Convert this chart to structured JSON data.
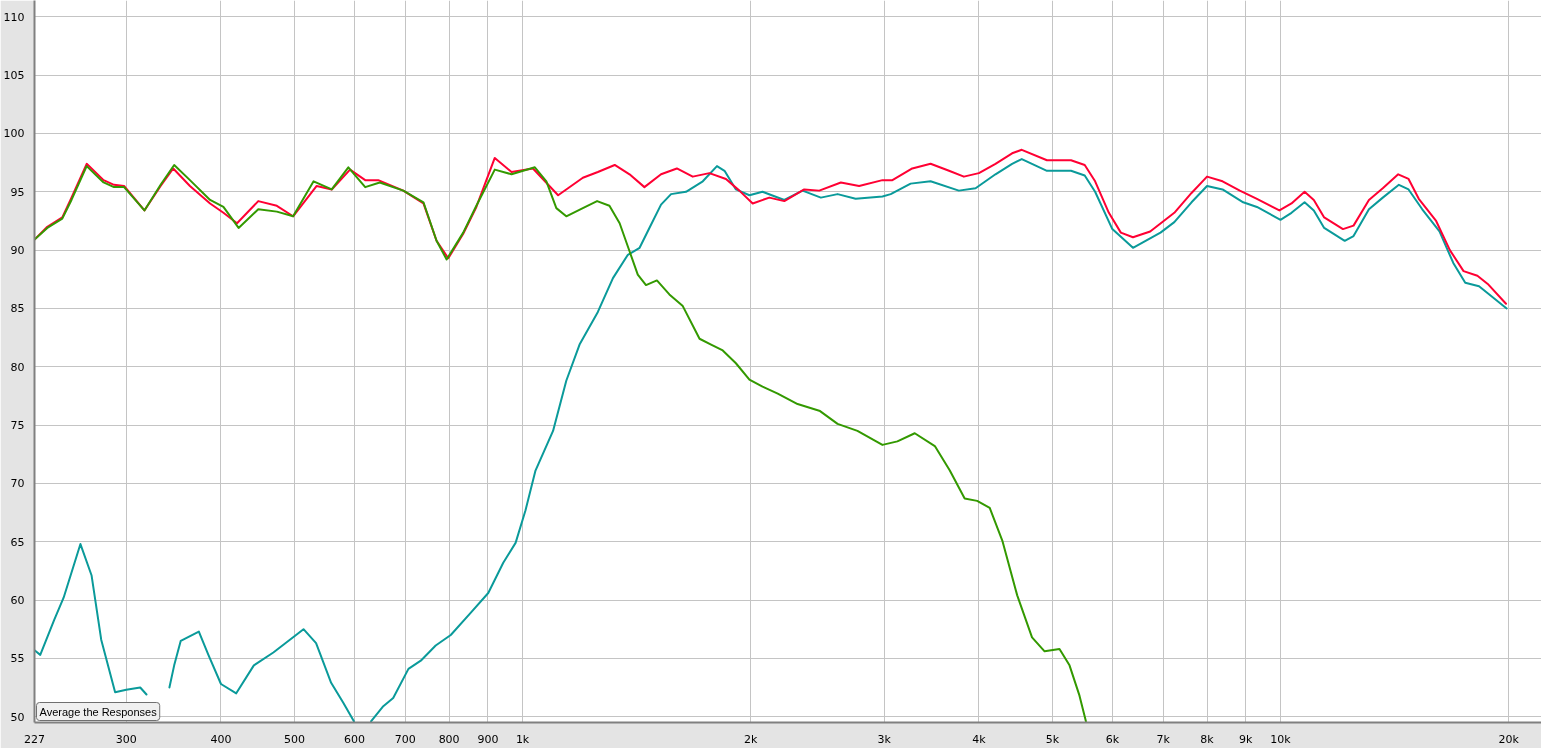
{
  "chart_data": {
    "type": "line",
    "log": "x",
    "grid": true,
    "xlim": [
      227,
      22100
    ],
    "ylim": [
      49.5,
      111.4
    ],
    "xticks": [
      227,
      300,
      400,
      500,
      600,
      700,
      800,
      900,
      {
        "value": 1000,
        "label": "1k"
      },
      {
        "value": 2000,
        "label": "2k"
      },
      {
        "value": 3000,
        "label": "3k"
      },
      {
        "value": 4000,
        "label": "4k"
      },
      {
        "value": 5000,
        "label": "5k"
      },
      {
        "value": 6000,
        "label": "6k"
      },
      {
        "value": 7000,
        "label": "7k"
      },
      {
        "value": 8000,
        "label": "8k"
      },
      {
        "value": 9000,
        "label": "9k"
      },
      {
        "value": 10000,
        "label": "10k"
      },
      {
        "value": 20000,
        "label": "20k"
      }
    ],
    "yticks": [
      50,
      55,
      60,
      65,
      70,
      75,
      80,
      85,
      90,
      95,
      100,
      105,
      110
    ],
    "annotations": [
      "Average the Responses"
    ],
    "series": [
      {
        "color": "#0a9a9a",
        "x": [
          227,
          231,
          241,
          248,
          261,
          270,
          278,
          290,
          300,
          313,
          319,
          330,
          342,
          347,
          354,
          374,
          385,
          400,
          419,
          442,
          469,
          514,
          534,
          559,
          580,
          599,
          615,
          631,
          655,
          675,
          707,
          734,
          768,
          804,
          854,
          901,
          943,
          979,
          1009,
          1040,
          1097,
          1142,
          1189,
          1257,
          1316,
          1377,
          1427,
          1470,
          1523,
          1570,
          1643,
          1729,
          1805,
          1847,
          1912,
          1992,
          2073,
          2215,
          2341,
          2475,
          2604,
          2751,
          2984,
          3060,
          3251,
          3454,
          3764,
          3960,
          4207,
          4425,
          4557,
          4919,
          5292,
          5517,
          5694,
          6000,
          6388,
          6945,
          7243,
          7632,
          8000,
          8386,
          8929,
          9310,
          10000,
          10340,
          10760,
          11066,
          11420,
          12155,
          12485,
          13083,
          13645,
          14330,
          14757,
          15383,
          16210,
          16904,
          17530,
          18280,
          18770,
          19880
        ],
        "values": [
          55.7,
          55.3,
          58.3,
          60.2,
          64.8,
          62.1,
          56.6,
          52.1,
          52.3,
          52.5,
          51.9,
          null,
          52.5,
          54.4,
          56.5,
          57.3,
          55.3,
          52.8,
          52.0,
          54.4,
          55.5,
          57.5,
          56.3,
          52.9,
          51.2,
          49.6,
          null,
          49.6,
          50.9,
          51.6,
          54.1,
          54.8,
          56.1,
          57.0,
          58.9,
          60.6,
          63.2,
          64.9,
          67.7,
          71.1,
          74.5,
          78.8,
          81.9,
          84.7,
          87.6,
          89.6,
          90.2,
          91.9,
          93.9,
          94.8,
          95.0,
          95.9,
          97.2,
          96.8,
          95.2,
          94.7,
          95.0,
          94.3,
          95.1,
          94.5,
          94.8,
          94.4,
          94.6,
          94.8,
          95.7,
          95.9,
          95.1,
          95.3,
          96.5,
          97.4,
          97.8,
          96.8,
          96.8,
          96.4,
          95.0,
          91.8,
          90.2,
          91.5,
          92.4,
          94.1,
          95.5,
          95.2,
          94.1,
          93.7,
          92.6,
          93.2,
          94.1,
          93.4,
          91.9,
          90.8,
          91.2,
          93.5,
          94.5,
          95.6,
          95.2,
          93.5,
          91.6,
          88.9,
          87.2,
          86.9,
          86.3,
          85.0
        ]
      },
      {
        "color": "#ff0033",
        "x": [
          227,
          236,
          247,
          254,
          266,
          280,
          289,
          298,
          317,
          333,
          346,
          364,
          387,
          403,
          420,
          448,
          474,
          498,
          535,
          560,
          592,
          620,
          645,
          696,
          740,
          770,
          798,
          835,
          869,
          919,
          967,
          1032,
          1114,
          1201,
          1257,
          1323,
          1384,
          1448,
          1523,
          1598,
          1677,
          1764,
          1855,
          1932,
          2012,
          2116,
          2215,
          2353,
          2463,
          2630,
          2780,
          2984,
          3076,
          3267,
          3454,
          3653,
          3822,
          4000,
          4207,
          4425,
          4557,
          4919,
          5292,
          5517,
          5694,
          5937,
          6157,
          6388,
          6731,
          7243,
          7632,
          8000,
          8386,
          8838,
          9310,
          9967,
          10340,
          10760,
          11066,
          11420,
          12090,
          12485,
          13083,
          13645,
          14300,
          14757,
          15222,
          16046,
          16730,
          17440,
          18190,
          18770,
          19840
        ],
        "values": [
          90.9,
          92.0,
          92.8,
          94.5,
          97.4,
          96.0,
          95.6,
          95.5,
          93.4,
          95.5,
          97.0,
          95.5,
          94.0,
          93.2,
          92.3,
          94.2,
          93.8,
          92.9,
          95.5,
          95.2,
          96.9,
          96.0,
          96.0,
          95.1,
          94.0,
          90.8,
          89.3,
          91.4,
          93.7,
          97.9,
          96.7,
          97.0,
          94.7,
          96.2,
          96.7,
          97.3,
          96.5,
          95.4,
          96.5,
          97.0,
          96.3,
          96.6,
          96.1,
          95.1,
          94.0,
          94.5,
          94.2,
          95.2,
          95.1,
          95.8,
          95.5,
          96.0,
          96.0,
          97.0,
          97.4,
          96.8,
          96.3,
          96.6,
          97.4,
          98.3,
          98.6,
          97.7,
          97.7,
          97.3,
          95.9,
          93.2,
          91.5,
          91.1,
          91.6,
          93.2,
          94.9,
          96.3,
          95.9,
          95.1,
          94.4,
          93.4,
          94.0,
          95.0,
          94.3,
          92.8,
          91.8,
          92.1,
          94.3,
          95.3,
          96.5,
          96.1,
          94.4,
          92.5,
          90.0,
          88.2,
          87.8,
          87.1,
          85.4
        ]
      },
      {
        "color": "#339900",
        "x": [
          227,
          236,
          247,
          254,
          266,
          280,
          289,
          298,
          317,
          333,
          347,
          364,
          387,
          403,
          422,
          448,
          474,
          498,
          530,
          560,
          589,
          620,
          648,
          696,
          740,
          770,
          794,
          835,
          869,
          919,
          967,
          1038,
          1075,
          1108,
          1142,
          1201,
          1254,
          1302,
          1343,
          1384,
          1419,
          1455,
          1504,
          1562,
          1627,
          1712,
          1773,
          1837,
          1912,
          1992,
          2073,
          2171,
          2306,
          2469,
          2604,
          2766,
          2984,
          3123,
          3292,
          3499,
          3662,
          3831,
          3979,
          4134,
          4295,
          4494,
          4701,
          4884,
          5110,
          5268,
          5430,
          5537
        ],
        "values": [
          90.9,
          91.9,
          92.7,
          94.3,
          97.2,
          95.8,
          95.4,
          95.4,
          93.4,
          95.6,
          97.3,
          96.0,
          94.3,
          93.7,
          91.9,
          93.5,
          93.3,
          92.9,
          95.9,
          95.2,
          97.1,
          95.4,
          95.8,
          95.1,
          94.1,
          90.8,
          89.2,
          91.5,
          93.8,
          96.9,
          96.5,
          97.1,
          95.9,
          93.6,
          92.9,
          93.6,
          94.2,
          93.8,
          92.3,
          89.9,
          87.9,
          87.0,
          87.4,
          86.2,
          85.2,
          82.4,
          81.9,
          81.4,
          80.3,
          78.9,
          78.3,
          77.7,
          76.8,
          76.2,
          75.1,
          74.5,
          73.3,
          73.6,
          74.3,
          73.2,
          71.1,
          68.7,
          68.5,
          67.9,
          65.1,
          60.4,
          56.8,
          55.6,
          55.8,
          54.4,
          51.8,
          49.6
        ]
      }
    ]
  }
}
